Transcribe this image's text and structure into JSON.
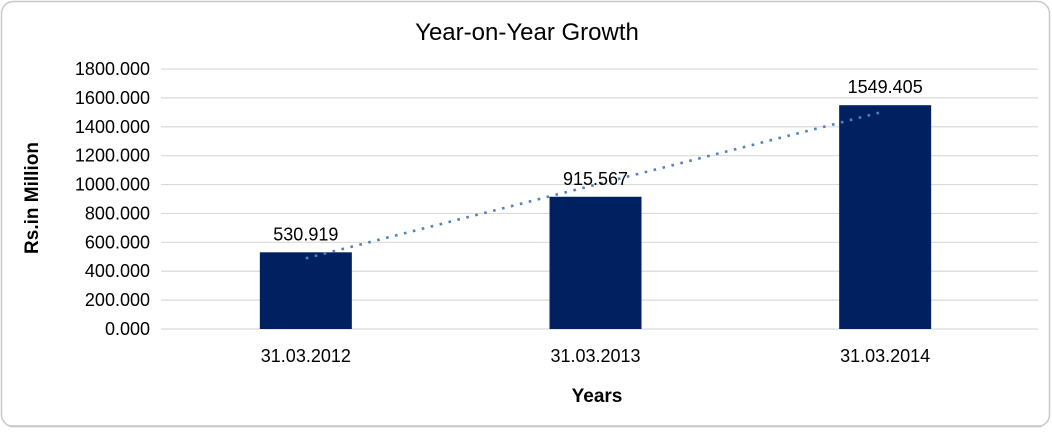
{
  "chart_data": {
    "type": "bar",
    "title": "Year-on-Year Growth",
    "categories": [
      "31.03.2012",
      "31.03.2013",
      "31.03.2014"
    ],
    "values": [
      530.919,
      915.567,
      1549.405
    ],
    "data_labels": [
      "530.919",
      "915.567",
      "1549.405"
    ],
    "xlabel": "Years",
    "ylabel": "Rs.in Million",
    "ylim": [
      0,
      1800
    ],
    "ytick_step": 200,
    "ytick_labels": [
      "0.000",
      "200.000",
      "400.000",
      "600.000",
      "800.000",
      "1000.000",
      "1200.000",
      "1400.000",
      "1600.000",
      "1800.000"
    ],
    "decimals": 3,
    "grid": true,
    "legend": "none",
    "trendline": {
      "type": "linear",
      "style": "dotted",
      "color": "#4F81BD"
    },
    "colors": {
      "bar": "#002060",
      "gridline": "#D9D9D9",
      "frame_border": "#C8C8C8",
      "text": "#000000",
      "background": "#FFFFFF"
    }
  }
}
